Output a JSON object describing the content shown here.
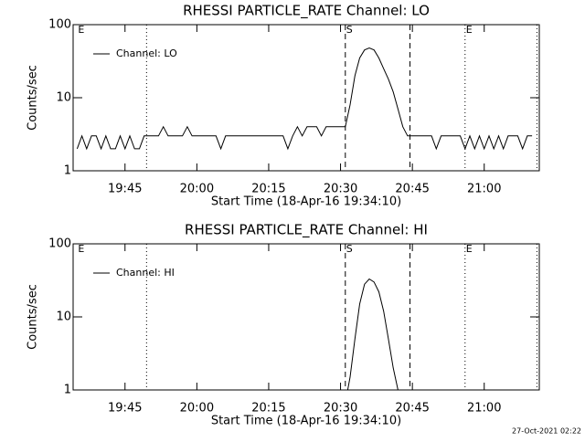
{
  "chart_data": [
    {
      "type": "line",
      "title": "RHESSI PARTICLE_RATE Channel: LO",
      "x_label": "Start Time (18-Apr-16 19:34:10)",
      "y_label": "Counts/sec",
      "xlim": [
        "19:34:10",
        "21:11:30"
      ],
      "xticks": [
        "19:45",
        "20:00",
        "20:15",
        "20:30",
        "20:45",
        "21:00"
      ],
      "ylim": [
        1,
        100
      ],
      "yticks": [
        1,
        10,
        100
      ],
      "log_y": true,
      "legend": "upper left",
      "events": [
        {
          "x": "19:49:30",
          "style": "dotted"
        },
        {
          "x": "20:31:00",
          "style": "dashed"
        },
        {
          "x": "20:44:30",
          "style": "dashed"
        },
        {
          "x": "20:56:00",
          "style": "dotted"
        },
        {
          "x": "21:11:00",
          "style": "dotted"
        }
      ],
      "event_labels": [
        {
          "x": "19:35:00",
          "text": "E"
        },
        {
          "x": "20:31:00",
          "text": "S"
        },
        {
          "x": "20:56:00",
          "text": "E"
        }
      ],
      "x": [
        "19:35",
        "19:36",
        "19:37",
        "19:38",
        "19:39",
        "19:40",
        "19:41",
        "19:42",
        "19:43",
        "19:44",
        "19:45",
        "19:46",
        "19:47",
        "19:48",
        "19:49",
        "19:50",
        "19:51",
        "19:52",
        "19:53",
        "19:54",
        "19:55",
        "19:56",
        "19:57",
        "19:58",
        "19:59",
        "20:00",
        "20:01",
        "20:02",
        "20:03",
        "20:04",
        "20:05",
        "20:06",
        "20:07",
        "20:08",
        "20:09",
        "20:10",
        "20:11",
        "20:12",
        "20:13",
        "20:14",
        "20:15",
        "20:16",
        "20:17",
        "20:18",
        "20:19",
        "20:20",
        "20:21",
        "20:22",
        "20:23",
        "20:24",
        "20:25",
        "20:26",
        "20:27",
        "20:28",
        "20:29",
        "20:30",
        "20:31",
        "20:32",
        "20:33",
        "20:34",
        "20:35",
        "20:36",
        "20:37",
        "20:38",
        "20:39",
        "20:40",
        "20:41",
        "20:42",
        "20:43",
        "20:44",
        "20:45",
        "20:46",
        "20:47",
        "20:48",
        "20:49",
        "20:50",
        "20:51",
        "20:52",
        "20:53",
        "20:54",
        "20:55",
        "20:56",
        "20:57",
        "20:58",
        "20:59",
        "21:00",
        "21:01",
        "21:02",
        "21:03",
        "21:04",
        "21:05",
        "21:06",
        "21:07",
        "21:08",
        "21:09",
        "21:10"
      ],
      "series": [
        {
          "name": "Channel: LO",
          "color": "#000000",
          "values": [
            2,
            3,
            2,
            3,
            3,
            2,
            3,
            2,
            2,
            3,
            2,
            3,
            2,
            2,
            3,
            3,
            3,
            3,
            4,
            3,
            3,
            3,
            3,
            4,
            3,
            3,
            3,
            3,
            3,
            3,
            2,
            3,
            3,
            3,
            3,
            3,
            3,
            3,
            3,
            3,
            3,
            3,
            3,
            3,
            2,
            3,
            4,
            3,
            4,
            4,
            4,
            3,
            4,
            4,
            4,
            4,
            4,
            8,
            20,
            35,
            45,
            48,
            45,
            35,
            25,
            18,
            12,
            7,
            4,
            3,
            3,
            3,
            3,
            3,
            3,
            2,
            3,
            3,
            3,
            3,
            3,
            2,
            3,
            2,
            3,
            2,
            3,
            2,
            3,
            2,
            3,
            3,
            3,
            2,
            3,
            3
          ]
        }
      ]
    },
    {
      "type": "line",
      "title": "RHESSI PARTICLE_RATE Channel: HI",
      "x_label": "Start Time (18-Apr-16 19:34:10)",
      "y_label": "Counts/sec",
      "xlim": [
        "19:34:10",
        "21:11:30"
      ],
      "xticks": [
        "19:45",
        "20:00",
        "20:15",
        "20:30",
        "20:45",
        "21:00"
      ],
      "ylim": [
        1,
        100
      ],
      "yticks": [
        1,
        10,
        100
      ],
      "log_y": true,
      "legend": "upper left",
      "events": [
        {
          "x": "19:49:30",
          "style": "dotted"
        },
        {
          "x": "20:31:00",
          "style": "dashed"
        },
        {
          "x": "20:44:30",
          "style": "dashed"
        },
        {
          "x": "20:56:00",
          "style": "dotted"
        },
        {
          "x": "21:11:00",
          "style": "dotted"
        }
      ],
      "event_labels": [
        {
          "x": "19:35:00",
          "text": "E"
        },
        {
          "x": "20:31:00",
          "text": "S"
        },
        {
          "x": "20:56:00",
          "text": "E"
        }
      ],
      "x": [
        "20:31:30",
        "20:32",
        "20:33",
        "20:34",
        "20:35",
        "20:36",
        "20:37",
        "20:38",
        "20:39",
        "20:40",
        "20:41",
        "20:42"
      ],
      "series": [
        {
          "name": "Channel: HI",
          "color": "#000000",
          "values": [
            1,
            1.5,
            5,
            15,
            28,
            33,
            30,
            22,
            12,
            5,
            2,
            1
          ]
        }
      ]
    }
  ],
  "footer": "27-Oct-2021 02:22"
}
